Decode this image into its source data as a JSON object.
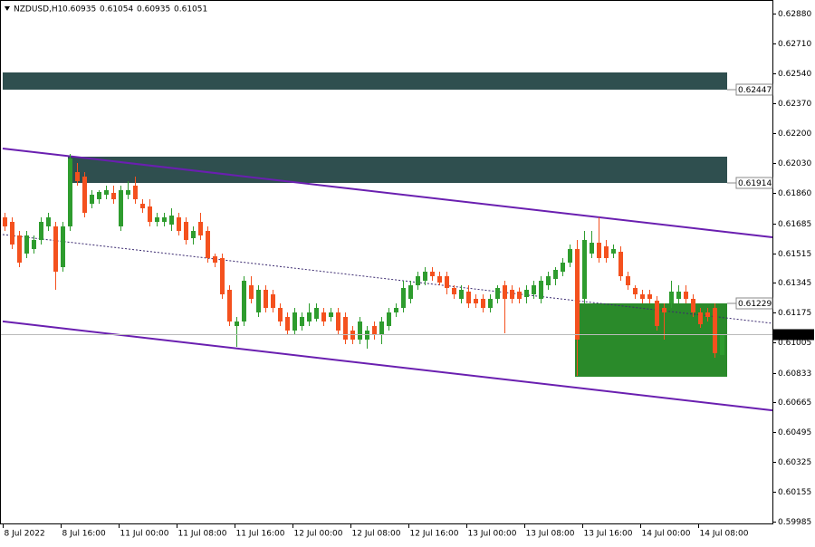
{
  "chart_data": {
    "type": "candlestick",
    "symbol": "NZDUSD,H1",
    "categories": [
      "8 Jul 2022",
      null,
      null,
      null,
      null,
      null,
      null,
      null,
      "8 Jul 16:00",
      null,
      null,
      null,
      null,
      null,
      null,
      null,
      "11 Jul 00:00",
      null,
      null,
      null,
      null,
      null,
      null,
      null,
      "11 Jul 08:00",
      null,
      null,
      null,
      null,
      null,
      null,
      null,
      "11 Jul 16:00",
      null,
      null,
      null,
      null,
      null,
      null,
      null,
      "12 Jul 00:00",
      null,
      null,
      null,
      null,
      null,
      null,
      null,
      "12 Jul 08:00",
      null,
      null,
      null,
      null,
      null,
      null,
      null,
      "12 Jul 16:00",
      null,
      null,
      null,
      null,
      null,
      null,
      null,
      "13 Jul 00:00",
      null,
      null,
      null,
      null,
      null,
      null,
      null,
      "13 Jul 08:00",
      null,
      null,
      null,
      null,
      null,
      null,
      null,
      "13 Jul 16:00",
      null,
      null,
      null,
      null,
      null,
      null,
      null,
      "14 Jul 00:00",
      null,
      null,
      null,
      null,
      null,
      null,
      null,
      "14 Jul 08:00",
      null,
      null,
      null
    ],
    "open": [
      0.61719,
      0.61693,
      0.61616,
      0.61513,
      0.61538,
      0.6159,
      0.61667,
      0.61667,
      0.61435,
      0.61667,
      0.61977,
      0.61951,
      0.61796,
      0.61822,
      0.61848,
      0.61858,
      0.61667,
      0.61848,
      0.619,
      0.61796,
      0.6178,
      0.61693,
      0.61693,
      0.61678,
      0.61719,
      0.61693,
      0.616,
      0.61693,
      0.61642,
      0.61497,
      0.61487,
      0.61306,
      0.611,
      0.61126,
      0.61332,
      0.61177,
      0.61306,
      0.6128,
      0.61203,
      0.61151,
      0.61074,
      0.611,
      0.61126,
      0.61141,
      0.61177,
      0.61151,
      0.61177,
      0.61151,
      0.61074,
      0.61022,
      0.61022,
      0.611,
      0.61048,
      0.611,
      0.61177,
      0.61203,
      0.61255,
      0.61332,
      0.61358,
      0.61409,
      0.61384,
      0.61384,
      0.61316,
      0.61255,
      0.61296,
      0.61255,
      0.61255,
      0.61203,
      0.61255,
      0.61332,
      0.61306,
      0.61296,
      0.61265,
      0.6128,
      0.61255,
      0.61332,
      0.61368,
      0.61409,
      0.61461,
      0.61538,
      0.61255,
      0.61513,
      0.61574,
      0.61554,
      0.61513,
      0.61523,
      0.61384,
      0.61316,
      0.6128,
      0.6128,
      0.61245,
      0.61203,
      0.61229,
      0.61255,
      0.61296,
      0.61255,
      0.61177,
      0.61177,
      0.61203,
      0.60935
    ],
    "high": [
      0.61745,
      0.61719,
      0.61642,
      0.61642,
      0.61616,
      0.61719,
      0.61745,
      0.61693,
      0.61693,
      0.6208,
      0.62029,
      0.61977,
      0.61874,
      0.61874,
      0.619,
      0.619,
      0.619,
      0.61925,
      0.61951,
      0.61822,
      0.61822,
      0.61745,
      0.61745,
      0.61771,
      0.61745,
      0.61719,
      0.61667,
      0.61745,
      0.61667,
      0.61513,
      0.61513,
      0.61332,
      0.61151,
      0.61384,
      0.61384,
      0.61332,
      0.61332,
      0.61306,
      0.61229,
      0.61177,
      0.61203,
      0.61177,
      0.61229,
      0.61229,
      0.61203,
      0.61203,
      0.61203,
      0.61177,
      0.611,
      0.61151,
      0.611,
      0.61126,
      0.61151,
      0.61203,
      0.61229,
      0.61358,
      0.61358,
      0.61409,
      0.61435,
      0.61435,
      0.61409,
      0.61409,
      0.61332,
      0.61332,
      0.61332,
      0.6128,
      0.6128,
      0.6128,
      0.61332,
      0.61358,
      0.61332,
      0.6132,
      0.61332,
      0.61358,
      0.61384,
      0.61409,
      0.61435,
      0.61487,
      0.61564,
      0.6159,
      0.61642,
      0.61642,
      0.61719,
      0.6159,
      0.61564,
      0.61554,
      0.61409,
      0.61332,
      0.61306,
      0.61306,
      0.6127,
      0.61229,
      0.61358,
      0.61332,
      0.61332,
      0.6128,
      0.61203,
      0.61203,
      0.61229,
      0.61054
    ],
    "low": [
      0.61642,
      0.61538,
      0.61435,
      0.61487,
      0.61513,
      0.61564,
      0.61642,
      0.61306,
      0.61409,
      0.61642,
      0.619,
      0.61719,
      0.61771,
      0.61796,
      0.61822,
      0.61796,
      0.61642,
      0.61822,
      0.61796,
      0.61745,
      0.61667,
      0.61667,
      0.61667,
      0.61642,
      0.61616,
      0.61564,
      0.61564,
      0.6159,
      0.61461,
      0.61435,
      0.61255,
      0.611,
      0.60981,
      0.611,
      0.61229,
      0.61151,
      0.61177,
      0.61177,
      0.611,
      0.61048,
      0.61048,
      0.61074,
      0.611,
      0.61126,
      0.611,
      0.61126,
      0.61048,
      0.60997,
      0.60997,
      0.60997,
      0.60971,
      0.61022,
      0.60997,
      0.61074,
      0.61151,
      0.61177,
      0.61229,
      0.61306,
      0.61332,
      0.61358,
      0.61332,
      0.6128,
      0.61255,
      0.61229,
      0.61203,
      0.61203,
      0.61177,
      0.61177,
      0.61229,
      0.61058,
      0.61229,
      0.61229,
      0.61229,
      0.61255,
      0.61229,
      0.61306,
      0.61332,
      0.61384,
      0.61435,
      0.60816,
      0.61229,
      0.61487,
      0.61461,
      0.61461,
      0.61487,
      0.61358,
      0.61306,
      0.61255,
      0.61229,
      0.61229,
      0.61074,
      0.61022,
      0.61203,
      0.61229,
      0.61229,
      0.61151,
      0.6109,
      0.61126,
      0.60919,
      0.60935
    ],
    "close": [
      0.61667,
      0.61564,
      0.61461,
      0.61616,
      0.6159,
      0.61693,
      0.61719,
      0.61409,
      0.61667,
      0.62054,
      0.61925,
      0.61745,
      0.61848,
      0.61864,
      0.61874,
      0.61822,
      0.61874,
      0.61874,
      0.61822,
      0.61771,
      0.61693,
      0.61719,
      0.61719,
      0.61729,
      0.61642,
      0.6159,
      0.61642,
      0.61616,
      0.61487,
      0.61461,
      0.6128,
      0.61126,
      0.61126,
      0.61358,
      0.61255,
      0.61306,
      0.61203,
      0.61203,
      0.61126,
      0.61074,
      0.61177,
      0.61151,
      0.61177,
      0.61203,
      0.61126,
      0.61177,
      0.61074,
      0.61022,
      0.61022,
      0.61126,
      0.61074,
      0.61048,
      0.61126,
      0.61177,
      0.61203,
      0.61316,
      0.61332,
      0.61384,
      0.61409,
      0.61384,
      0.61348,
      0.61316,
      0.6128,
      0.61306,
      0.61229,
      0.61229,
      0.61203,
      0.61255,
      0.61316,
      0.61255,
      0.61255,
      0.61255,
      0.61306,
      0.61332,
      0.61358,
      0.61384,
      0.6142,
      0.61461,
      0.61538,
      0.61022,
      0.6159,
      0.61574,
      0.61487,
      0.61487,
      0.61538,
      0.61384,
      0.61332,
      0.6128,
      0.61255,
      0.61255,
      0.611,
      0.61177,
      0.61296,
      0.61296,
      0.61255,
      0.61177,
      0.6111,
      0.61151,
      0.60945,
      0.61051
    ],
    "up_color": "#2e9c2e",
    "down_color": "#f4511e",
    "ylim": [
      0.59975,
      0.62942
    ],
    "yticks": [
      {
        "value": 0.6288,
        "label": "0.62880"
      },
      {
        "value": 0.6271,
        "label": "0.62710"
      },
      {
        "value": 0.6254,
        "label": "0.62540"
      },
      {
        "value": 0.6237,
        "label": "0.62370"
      },
      {
        "value": 0.622,
        "label": "0.62200"
      },
      {
        "value": 0.6203,
        "label": "0.62030"
      },
      {
        "value": 0.6186,
        "label": "0.61860"
      },
      0.61685,
      0.61515,
      0.61345,
      0.61175,
      0.61005,
      0.60833,
      0.60665,
      0.60495,
      0.60325,
      0.60155,
      0.59985
    ],
    "zones": [
      {
        "level": 0.62447,
        "top": 0.62545,
        "start": 0,
        "color": "#2f4f4f"
      },
      {
        "level": 0.61914,
        "top": 0.62065,
        "start": 9,
        "color": "#2f4f4f"
      },
      {
        "level": 0.61229,
        "bottom": 0.60811,
        "start": 79,
        "color": "#2a8a2a"
      }
    ],
    "trendlines": [
      {
        "points": [
          [
            0,
            0.6211
          ],
          [
            100,
            0.61634
          ]
        ],
        "color": "#6a1fb0",
        "dashed": false
      },
      {
        "points": [
          [
            0,
            0.6162
          ],
          [
            100,
            0.61144
          ]
        ],
        "color": "#3b2a70",
        "dashed": true
      },
      {
        "points": [
          [
            0,
            0.61125
          ],
          [
            100,
            0.60648
          ]
        ],
        "color": "#6a1fb0",
        "dashed": false
      }
    ]
  }
}
